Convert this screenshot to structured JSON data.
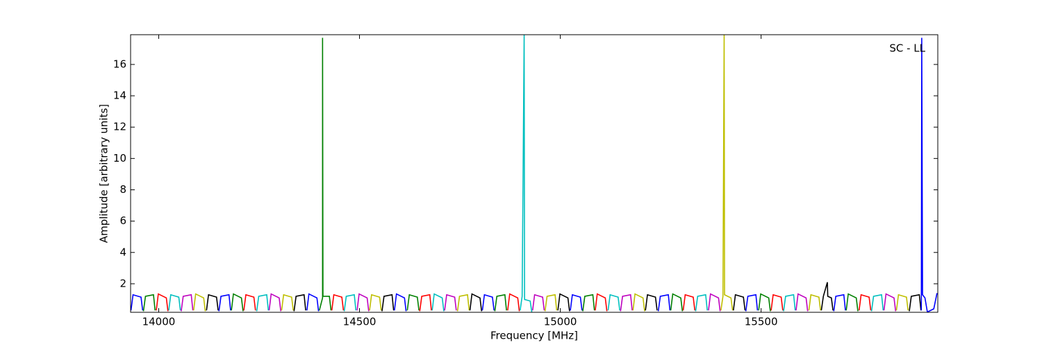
{
  "chart_data": {
    "type": "line",
    "xlabel": "Frequency [MHz]",
    "ylabel": "Amplitude [arbitrary units]",
    "annotation": "SC - LL",
    "xlim": [
      13930,
      15940
    ],
    "ylim": [
      0.18,
      17.9
    ],
    "xticks": [
      14000,
      14500,
      15000,
      15500
    ],
    "yticks": [
      2,
      4,
      6,
      8,
      10,
      12,
      14,
      16
    ],
    "series": [
      {
        "color": "#0000ff",
        "x": [
          13931,
          13936,
          13956,
          13960
        ],
        "values": [
          0.3,
          1.3,
          1.15,
          0.3
        ]
      },
      {
        "color": "#008000",
        "x": [
          13962,
          13967,
          13987,
          13991
        ],
        "values": [
          0.25,
          1.2,
          1.3,
          0.3
        ]
      },
      {
        "color": "#ff0000",
        "x": [
          13994,
          13999,
          14019,
          14023
        ],
        "values": [
          0.3,
          1.35,
          1.1,
          0.25
        ]
      },
      {
        "color": "#00bfbf",
        "x": [
          14025,
          14030,
          14050,
          14054
        ],
        "values": [
          0.3,
          1.3,
          1.15,
          0.3
        ]
      },
      {
        "color": "#bf00bf",
        "x": [
          14056,
          14061,
          14081,
          14085
        ],
        "values": [
          0.25,
          1.2,
          1.3,
          0.3
        ]
      },
      {
        "color": "#bfbf00",
        "x": [
          14087,
          14092,
          14112,
          14116
        ],
        "values": [
          0.3,
          1.35,
          1.1,
          0.25
        ]
      },
      {
        "color": "#000000",
        "x": [
          14119,
          14124,
          14144,
          14148
        ],
        "values": [
          0.3,
          1.3,
          1.15,
          0.3
        ]
      },
      {
        "color": "#0000ff",
        "x": [
          14150,
          14155,
          14175,
          14179
        ],
        "values": [
          0.25,
          1.2,
          1.3,
          0.3
        ]
      },
      {
        "color": "#008000",
        "x": [
          14181,
          14186,
          14206,
          14210
        ],
        "values": [
          0.3,
          1.35,
          1.1,
          0.25
        ]
      },
      {
        "color": "#ff0000",
        "x": [
          14212,
          14217,
          14237,
          14241
        ],
        "values": [
          0.3,
          1.3,
          1.15,
          0.3
        ]
      },
      {
        "color": "#00bfbf",
        "x": [
          14244,
          14249,
          14269,
          14273
        ],
        "values": [
          0.25,
          1.2,
          1.3,
          0.3
        ]
      },
      {
        "color": "#bf00bf",
        "x": [
          14275,
          14280,
          14300,
          14304
        ],
        "values": [
          0.3,
          1.35,
          1.1,
          0.25
        ]
      },
      {
        "color": "#bfbf00",
        "x": [
          14306,
          14311,
          14331,
          14335
        ],
        "values": [
          0.3,
          1.3,
          1.15,
          0.3
        ]
      },
      {
        "color": "#000000",
        "x": [
          14337,
          14342,
          14362,
          14366
        ],
        "values": [
          0.25,
          1.2,
          1.3,
          0.3
        ]
      },
      {
        "color": "#0000ff",
        "x": [
          14369,
          14374,
          14394,
          14398
        ],
        "values": [
          0.3,
          1.35,
          1.1,
          0.25
        ]
      },
      {
        "color": "#008000",
        "x": [
          14400,
          14408,
          14408,
          14409,
          14425,
          14429
        ],
        "values": [
          0.3,
          1.1,
          17.7,
          1.2,
          1.2,
          0.3
        ]
      },
      {
        "color": "#ff0000",
        "x": [
          14431,
          14436,
          14456,
          14460
        ],
        "values": [
          0.3,
          1.3,
          1.15,
          0.3
        ]
      },
      {
        "color": "#00bfbf",
        "x": [
          14462,
          14467,
          14487,
          14491
        ],
        "values": [
          0.25,
          1.2,
          1.3,
          0.3
        ]
      },
      {
        "color": "#bf00bf",
        "x": [
          14494,
          14499,
          14519,
          14523
        ],
        "values": [
          0.3,
          1.35,
          1.1,
          0.25
        ]
      },
      {
        "color": "#bfbf00",
        "x": [
          14525,
          14530,
          14550,
          14554
        ],
        "values": [
          0.3,
          1.3,
          1.15,
          0.3
        ]
      },
      {
        "color": "#000000",
        "x": [
          14556,
          14561,
          14581,
          14585
        ],
        "values": [
          0.25,
          1.2,
          1.3,
          0.3
        ]
      },
      {
        "color": "#0000ff",
        "x": [
          14587,
          14592,
          14612,
          14616
        ],
        "values": [
          0.3,
          1.35,
          1.1,
          0.25
        ]
      },
      {
        "color": "#008000",
        "x": [
          14619,
          14624,
          14644,
          14648
        ],
        "values": [
          0.3,
          1.3,
          1.15,
          0.3
        ]
      },
      {
        "color": "#ff0000",
        "x": [
          14650,
          14655,
          14675,
          14679
        ],
        "values": [
          0.25,
          1.2,
          1.3,
          0.3
        ]
      },
      {
        "color": "#00bfbf",
        "x": [
          14681,
          14686,
          14706,
          14710
        ],
        "values": [
          0.3,
          1.35,
          1.1,
          0.25
        ]
      },
      {
        "color": "#bf00bf",
        "x": [
          14712,
          14717,
          14737,
          14741
        ],
        "values": [
          0.3,
          1.3,
          1.15,
          0.3
        ]
      },
      {
        "color": "#bfbf00",
        "x": [
          14744,
          14749,
          14769,
          14773
        ],
        "values": [
          0.25,
          1.2,
          1.3,
          0.3
        ]
      },
      {
        "color": "#000000",
        "x": [
          14775,
          14780,
          14800,
          14804
        ],
        "values": [
          0.3,
          1.35,
          1.1,
          0.25
        ]
      },
      {
        "color": "#0000ff",
        "x": [
          14806,
          14811,
          14831,
          14835
        ],
        "values": [
          0.3,
          1.3,
          1.15,
          0.3
        ]
      },
      {
        "color": "#008000",
        "x": [
          14837,
          14842,
          14862,
          14866
        ],
        "values": [
          0.25,
          1.2,
          1.3,
          0.3
        ]
      },
      {
        "color": "#ff0000",
        "x": [
          14869,
          14874,
          14894,
          14898
        ],
        "values": [
          0.3,
          1.35,
          1.1,
          0.25
        ]
      },
      {
        "color": "#00bfbf",
        "x": [
          14900,
          14905,
          14910,
          14911,
          14925,
          14929
        ],
        "values": [
          0.3,
          1.2,
          17.9,
          1.0,
          0.9,
          0.2
        ]
      },
      {
        "color": "#bf00bf",
        "x": [
          14931,
          14936,
          14956,
          14960
        ],
        "values": [
          0.3,
          1.3,
          1.15,
          0.3
        ]
      },
      {
        "color": "#bfbf00",
        "x": [
          14962,
          14967,
          14987,
          14991
        ],
        "values": [
          0.25,
          1.2,
          1.3,
          0.3
        ]
      },
      {
        "color": "#000000",
        "x": [
          14994,
          14999,
          15019,
          15023
        ],
        "values": [
          0.3,
          1.35,
          1.1,
          0.25
        ]
      },
      {
        "color": "#0000ff",
        "x": [
          15025,
          15030,
          15050,
          15054
        ],
        "values": [
          0.3,
          1.3,
          1.15,
          0.3
        ]
      },
      {
        "color": "#008000",
        "x": [
          15056,
          15061,
          15081,
          15085
        ],
        "values": [
          0.25,
          1.2,
          1.3,
          0.3
        ]
      },
      {
        "color": "#ff0000",
        "x": [
          15087,
          15092,
          15112,
          15116
        ],
        "values": [
          0.3,
          1.35,
          1.1,
          0.25
        ]
      },
      {
        "color": "#00bfbf",
        "x": [
          15119,
          15124,
          15144,
          15148
        ],
        "values": [
          0.3,
          1.3,
          1.15,
          0.3
        ]
      },
      {
        "color": "#bf00bf",
        "x": [
          15150,
          15155,
          15175,
          15179
        ],
        "values": [
          0.25,
          1.2,
          1.3,
          0.3
        ]
      },
      {
        "color": "#bfbf00",
        "x": [
          15181,
          15186,
          15206,
          15210
        ],
        "values": [
          0.3,
          1.35,
          1.1,
          0.25
        ]
      },
      {
        "color": "#000000",
        "x": [
          15212,
          15217,
          15237,
          15241
        ],
        "values": [
          0.3,
          1.3,
          1.15,
          0.3
        ]
      },
      {
        "color": "#0000ff",
        "x": [
          15244,
          15249,
          15269,
          15273
        ],
        "values": [
          0.25,
          1.2,
          1.3,
          0.3
        ]
      },
      {
        "color": "#008000",
        "x": [
          15275,
          15280,
          15300,
          15304
        ],
        "values": [
          0.3,
          1.35,
          1.1,
          0.25
        ]
      },
      {
        "color": "#ff0000",
        "x": [
          15306,
          15311,
          15331,
          15335
        ],
        "values": [
          0.3,
          1.3,
          1.15,
          0.3
        ]
      },
      {
        "color": "#00bfbf",
        "x": [
          15337,
          15342,
          15362,
          15366
        ],
        "values": [
          0.25,
          1.2,
          1.3,
          0.3
        ]
      },
      {
        "color": "#bf00bf",
        "x": [
          15369,
          15374,
          15394,
          15398
        ],
        "values": [
          0.3,
          1.35,
          1.1,
          0.25
        ]
      },
      {
        "color": "#bfbf00",
        "x": [
          15400,
          15405,
          15408,
          15409,
          15425,
          15429
        ],
        "values": [
          0.3,
          1.2,
          17.9,
          1.3,
          1.1,
          0.3
        ]
      },
      {
        "color": "#000000",
        "x": [
          15431,
          15436,
          15456,
          15460
        ],
        "values": [
          0.3,
          1.3,
          1.15,
          0.3
        ]
      },
      {
        "color": "#0000ff",
        "x": [
          15462,
          15467,
          15487,
          15491
        ],
        "values": [
          0.25,
          1.2,
          1.3,
          0.3
        ]
      },
      {
        "color": "#008000",
        "x": [
          15494,
          15499,
          15519,
          15523
        ],
        "values": [
          0.3,
          1.35,
          1.1,
          0.25
        ]
      },
      {
        "color": "#ff0000",
        "x": [
          15525,
          15530,
          15550,
          15554
        ],
        "values": [
          0.3,
          1.3,
          1.15,
          0.3
        ]
      },
      {
        "color": "#00bfbf",
        "x": [
          15556,
          15561,
          15581,
          15585
        ],
        "values": [
          0.25,
          1.2,
          1.3,
          0.3
        ]
      },
      {
        "color": "#bf00bf",
        "x": [
          15587,
          15592,
          15612,
          15616
        ],
        "values": [
          0.3,
          1.35,
          1.1,
          0.25
        ]
      },
      {
        "color": "#bfbf00",
        "x": [
          15619,
          15624,
          15644,
          15648
        ],
        "values": [
          0.3,
          1.3,
          1.15,
          0.3
        ]
      },
      {
        "color": "#000000",
        "x": [
          15650,
          15655,
          15665,
          15666,
          15675,
          15679
        ],
        "values": [
          0.3,
          1.2,
          2.1,
          1.2,
          1.1,
          0.3
        ]
      },
      {
        "color": "#0000ff",
        "x": [
          15681,
          15686,
          15706,
          15710
        ],
        "values": [
          0.25,
          1.2,
          1.3,
          0.3
        ]
      },
      {
        "color": "#008000",
        "x": [
          15712,
          15717,
          15737,
          15741
        ],
        "values": [
          0.3,
          1.35,
          1.1,
          0.25
        ]
      },
      {
        "color": "#ff0000",
        "x": [
          15744,
          15749,
          15769,
          15773
        ],
        "values": [
          0.3,
          1.3,
          1.15,
          0.3
        ]
      },
      {
        "color": "#00bfbf",
        "x": [
          15775,
          15780,
          15800,
          15804
        ],
        "values": [
          0.25,
          1.2,
          1.3,
          0.3
        ]
      },
      {
        "color": "#bf00bf",
        "x": [
          15806,
          15811,
          15831,
          15835
        ],
        "values": [
          0.3,
          1.35,
          1.1,
          0.25
        ]
      },
      {
        "color": "#bfbf00",
        "x": [
          15837,
          15842,
          15862,
          15866
        ],
        "values": [
          0.3,
          1.3,
          1.15,
          0.3
        ]
      },
      {
        "color": "#000000",
        "x": [
          15869,
          15874,
          15894,
          15898
        ],
        "values": [
          0.25,
          1.2,
          1.3,
          0.3
        ]
      },
      {
        "color": "#0000ff",
        "x": [
          15899,
          15900,
          15902,
          15908,
          15914,
          15930,
          15938
        ],
        "values": [
          0.3,
          17.7,
          1.3,
          1.1,
          0.2,
          0.4,
          1.4
        ]
      }
    ]
  }
}
